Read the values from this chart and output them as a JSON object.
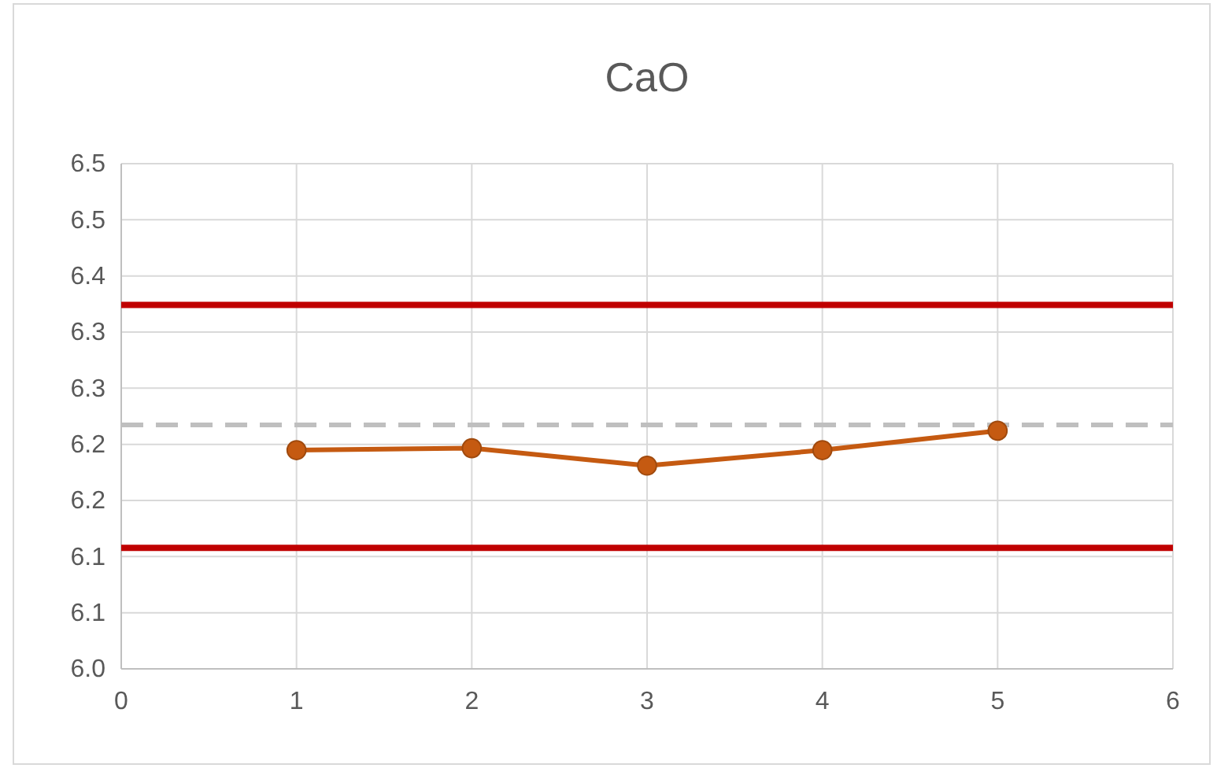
{
  "chart_data": {
    "type": "line",
    "title": "CaO",
    "x": [
      1,
      2,
      3,
      4,
      5
    ],
    "series": [
      {
        "color": "#c55a11",
        "values": [
          6.226,
          6.228,
          6.21,
          6.226,
          6.246
        ]
      }
    ],
    "xlim": [
      0,
      6
    ],
    "xticks": [
      0,
      1,
      2,
      3,
      4,
      5,
      6
    ],
    "ylim": [
      6.0,
      6.522
    ],
    "yticks": [
      {
        "value": 6.0,
        "label": "6.0"
      },
      {
        "value": 6.058,
        "label": "6.1"
      },
      {
        "value": 6.116,
        "label": "6.1"
      },
      {
        "value": 6.174,
        "label": "6.2"
      },
      {
        "value": 6.232,
        "label": "6.2"
      },
      {
        "value": 6.29,
        "label": "6.3"
      },
      {
        "value": 6.348,
        "label": "6.3"
      },
      {
        "value": 6.406,
        "label": "6.4"
      },
      {
        "value": 6.464,
        "label": "6.5"
      },
      {
        "value": 6.522,
        "label": "6.5"
      }
    ],
    "ref_lines": [
      {
        "axis": "y",
        "value": 6.376,
        "color": "#c00000",
        "line_style": "solid"
      },
      {
        "axis": "y",
        "value": 6.125,
        "color": "#c00000",
        "line_style": "solid"
      },
      {
        "axis": "y",
        "value": 6.252,
        "color": "#bfbfbf",
        "line_style": "dashed"
      }
    ],
    "grid": true,
    "marker": "circle",
    "line_style": "solid"
  }
}
